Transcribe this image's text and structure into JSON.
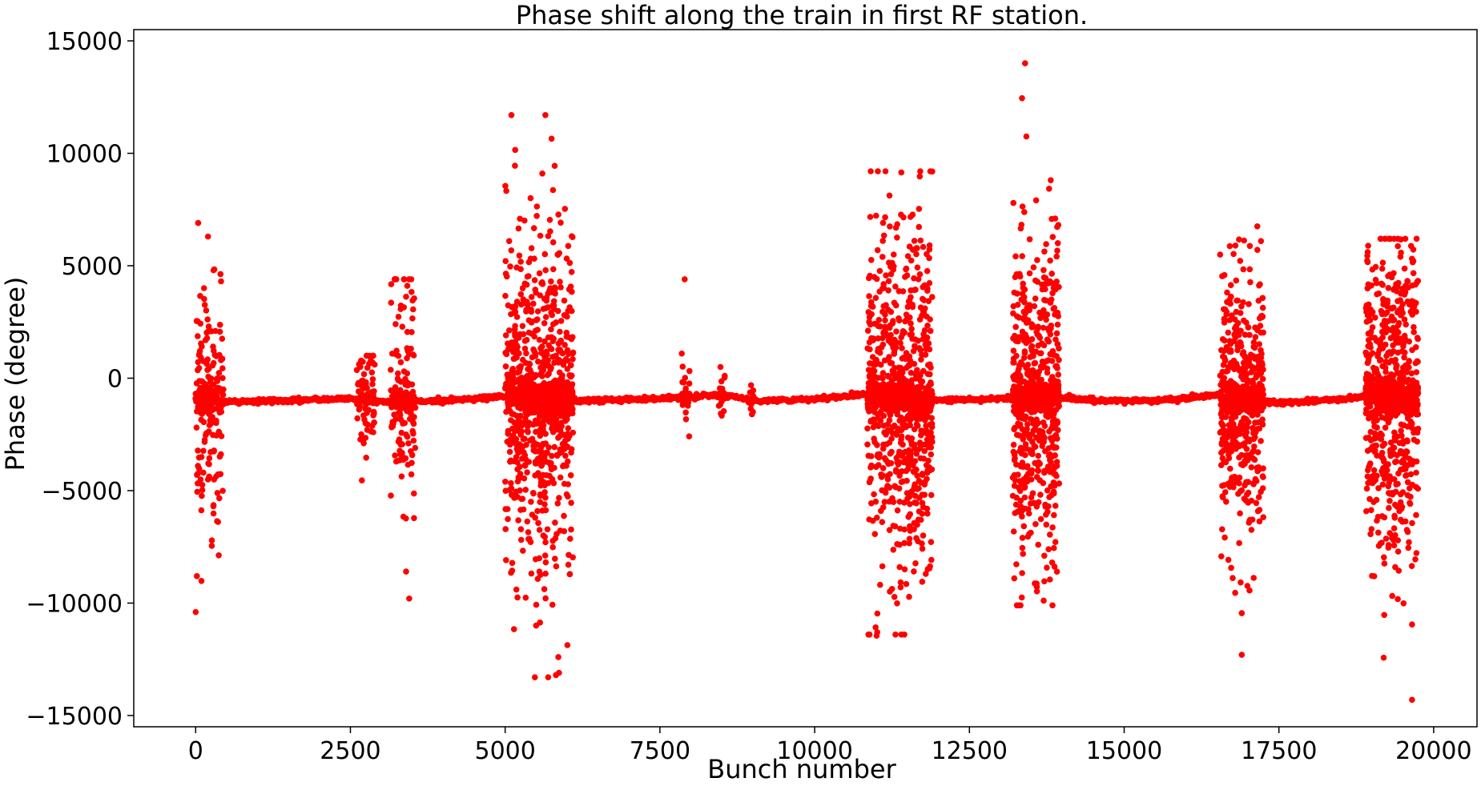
{
  "chart_data": {
    "type": "scatter",
    "title": "Phase shift along the train in first RF station.",
    "xlabel": "Bunch number",
    "ylabel": "Phase (degree)",
    "xlim": [
      -1000,
      20700
    ],
    "ylim": [
      -15500,
      15500
    ],
    "xticks": [
      0,
      2500,
      5000,
      7500,
      10000,
      12500,
      15000,
      17500,
      20000
    ],
    "xtick_labels": [
      "0",
      "2500",
      "5000",
      "7500",
      "10000",
      "12500",
      "15000",
      "17500",
      "20000"
    ],
    "yticks": [
      -15000,
      -10000,
      -5000,
      0,
      5000,
      10000,
      15000
    ],
    "ytick_labels": [
      "−15000",
      "−10000",
      "−5000",
      "0",
      "5000",
      "10000",
      "15000"
    ],
    "grid": false,
    "legend": false,
    "marker_color": "#ff0000",
    "baseline_trend": [
      [
        0,
        -950
      ],
      [
        500,
        -1050
      ],
      [
        1500,
        -1000
      ],
      [
        2500,
        -900
      ],
      [
        3000,
        -1050
      ],
      [
        4000,
        -1000
      ],
      [
        5000,
        -800
      ],
      [
        5500,
        -950
      ],
      [
        6000,
        -1000
      ],
      [
        7000,
        -950
      ],
      [
        7500,
        -900
      ],
      [
        8000,
        -850
      ],
      [
        8500,
        -700
      ],
      [
        9000,
        -1000
      ],
      [
        10000,
        -950
      ],
      [
        10800,
        -700
      ],
      [
        11200,
        -900
      ],
      [
        12000,
        -1000
      ],
      [
        13000,
        -900
      ],
      [
        14000,
        -850
      ],
      [
        14500,
        -1000
      ],
      [
        15500,
        -1000
      ],
      [
        16500,
        -750
      ],
      [
        17000,
        -1000
      ],
      [
        17500,
        -1100
      ],
      [
        18500,
        -950
      ],
      [
        19000,
        -750
      ],
      [
        19700,
        -1000
      ]
    ],
    "clusters": [
      {
        "x_range": [
          0,
          450
        ],
        "y_range": [
          -10400,
          6900
        ],
        "count": 150,
        "spread": 2600
      },
      {
        "x_range": [
          2600,
          2900
        ],
        "y_range": [
          -5000,
          1000
        ],
        "count": 60,
        "spread": 1300
      },
      {
        "x_range": [
          3150,
          3550
        ],
        "y_range": [
          -9800,
          4400
        ],
        "count": 110,
        "spread": 2800
      },
      {
        "x_range": [
          5000,
          6100
        ],
        "y_range": [
          -13300,
          11700
        ],
        "count": 700,
        "spread": 4000
      },
      {
        "x_range": [
          7850,
          7980
        ],
        "y_range": [
          -4700,
          4400
        ],
        "count": 14,
        "spread": 1200
      },
      {
        "x_range": [
          8450,
          8550
        ],
        "y_range": [
          -3500,
          500
        ],
        "count": 14,
        "spread": 900
      },
      {
        "x_range": [
          8950,
          9020
        ],
        "y_range": [
          -1500,
          600
        ],
        "count": 8,
        "spread": 500
      },
      {
        "x_range": [
          10850,
          11900
        ],
        "y_range": [
          -11400,
          9200
        ],
        "count": 650,
        "spread": 3800
      },
      {
        "x_range": [
          13200,
          13950
        ],
        "y_range": [
          -10100,
          14000
        ],
        "count": 520,
        "spread": 3800
      },
      {
        "x_range": [
          16550,
          17250
        ],
        "y_range": [
          -12300,
          6800
        ],
        "count": 420,
        "spread": 2900
      },
      {
        "x_range": [
          18900,
          19750
        ],
        "y_range": [
          -14300,
          6200
        ],
        "count": 560,
        "spread": 3600
      }
    ],
    "extreme_points": [
      {
        "x": 13400,
        "y": 14000
      },
      {
        "x": 13350,
        "y": 12450
      },
      {
        "x": 13420,
        "y": 10750
      },
      {
        "x": 5650,
        "y": 11700
      },
      {
        "x": 5750,
        "y": 10650
      },
      {
        "x": 5600,
        "y": 9100
      },
      {
        "x": 11400,
        "y": 9150
      },
      {
        "x": 17150,
        "y": 6750
      },
      {
        "x": 40,
        "y": 6900
      },
      {
        "x": 200,
        "y": 6300
      },
      {
        "x": 19300,
        "y": 6200
      },
      {
        "x": 7900,
        "y": 4400
      },
      {
        "x": 3450,
        "y": 4400
      },
      {
        "x": 0,
        "y": -10400
      },
      {
        "x": 20,
        "y": -8800
      },
      {
        "x": 5820,
        "y": -13200
      },
      {
        "x": 5870,
        "y": -13100
      },
      {
        "x": 5860,
        "y": -12400
      },
      {
        "x": 5500,
        "y": -11000
      },
      {
        "x": 11000,
        "y": -11450
      },
      {
        "x": 11400,
        "y": -11400
      },
      {
        "x": 13300,
        "y": -10100
      },
      {
        "x": 16900,
        "y": -12300
      },
      {
        "x": 16900,
        "y": -10450
      },
      {
        "x": 19650,
        "y": -14300
      },
      {
        "x": 19650,
        "y": -10950
      },
      {
        "x": 3450,
        "y": -9800
      },
      {
        "x": 3400,
        "y": -8600
      },
      {
        "x": 5200,
        "y": -9750
      },
      {
        "x": 13800,
        "y": -8950
      }
    ]
  }
}
